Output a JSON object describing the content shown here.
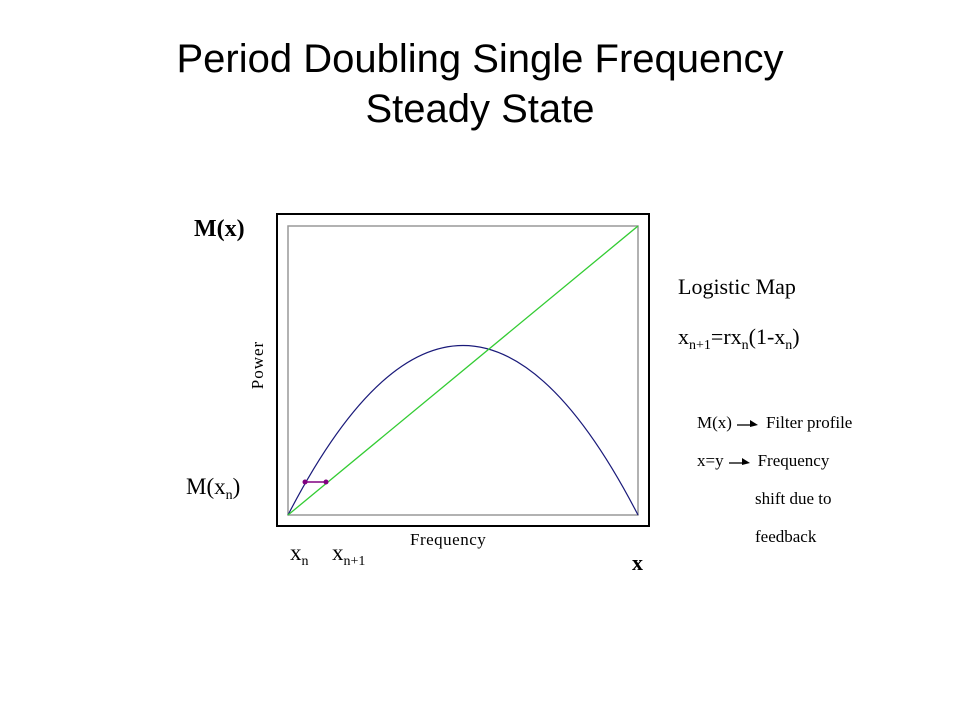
{
  "title": {
    "line1": "Period Doubling Single Frequency",
    "line2": "Steady State"
  },
  "axes": {
    "y_top_label": "M(x)",
    "x_label": "x",
    "y_side_label": "Power",
    "x_bottom_label": "Frequency"
  },
  "annotations": {
    "m_xn_base": "M(x",
    "m_xn_sub": "n",
    "m_xn_close": ")",
    "xn_base": "x",
    "xn_sub": "n",
    "xn1_base": "x",
    "xn1_sub": "n+1"
  },
  "logistic": {
    "title": "Logistic Map",
    "eq_x": "x",
    "eq_sub1": "n+1",
    "eq_mid": "=rx",
    "eq_sub2": "n",
    "eq_open": "(1-x",
    "eq_sub3": "n",
    "eq_close": ")"
  },
  "legend": {
    "row1_left": "M(x)",
    "row1_right": "Filter profile",
    "row2_left": "x=y",
    "row2_right": "Frequency",
    "row3": "shift due to",
    "row4": "feedback"
  },
  "colors": {
    "curve": "#1a1a7a",
    "diagonal": "#33cc33",
    "step": "#800080",
    "frame": "#000000",
    "inner_frame": "#999999"
  }
}
